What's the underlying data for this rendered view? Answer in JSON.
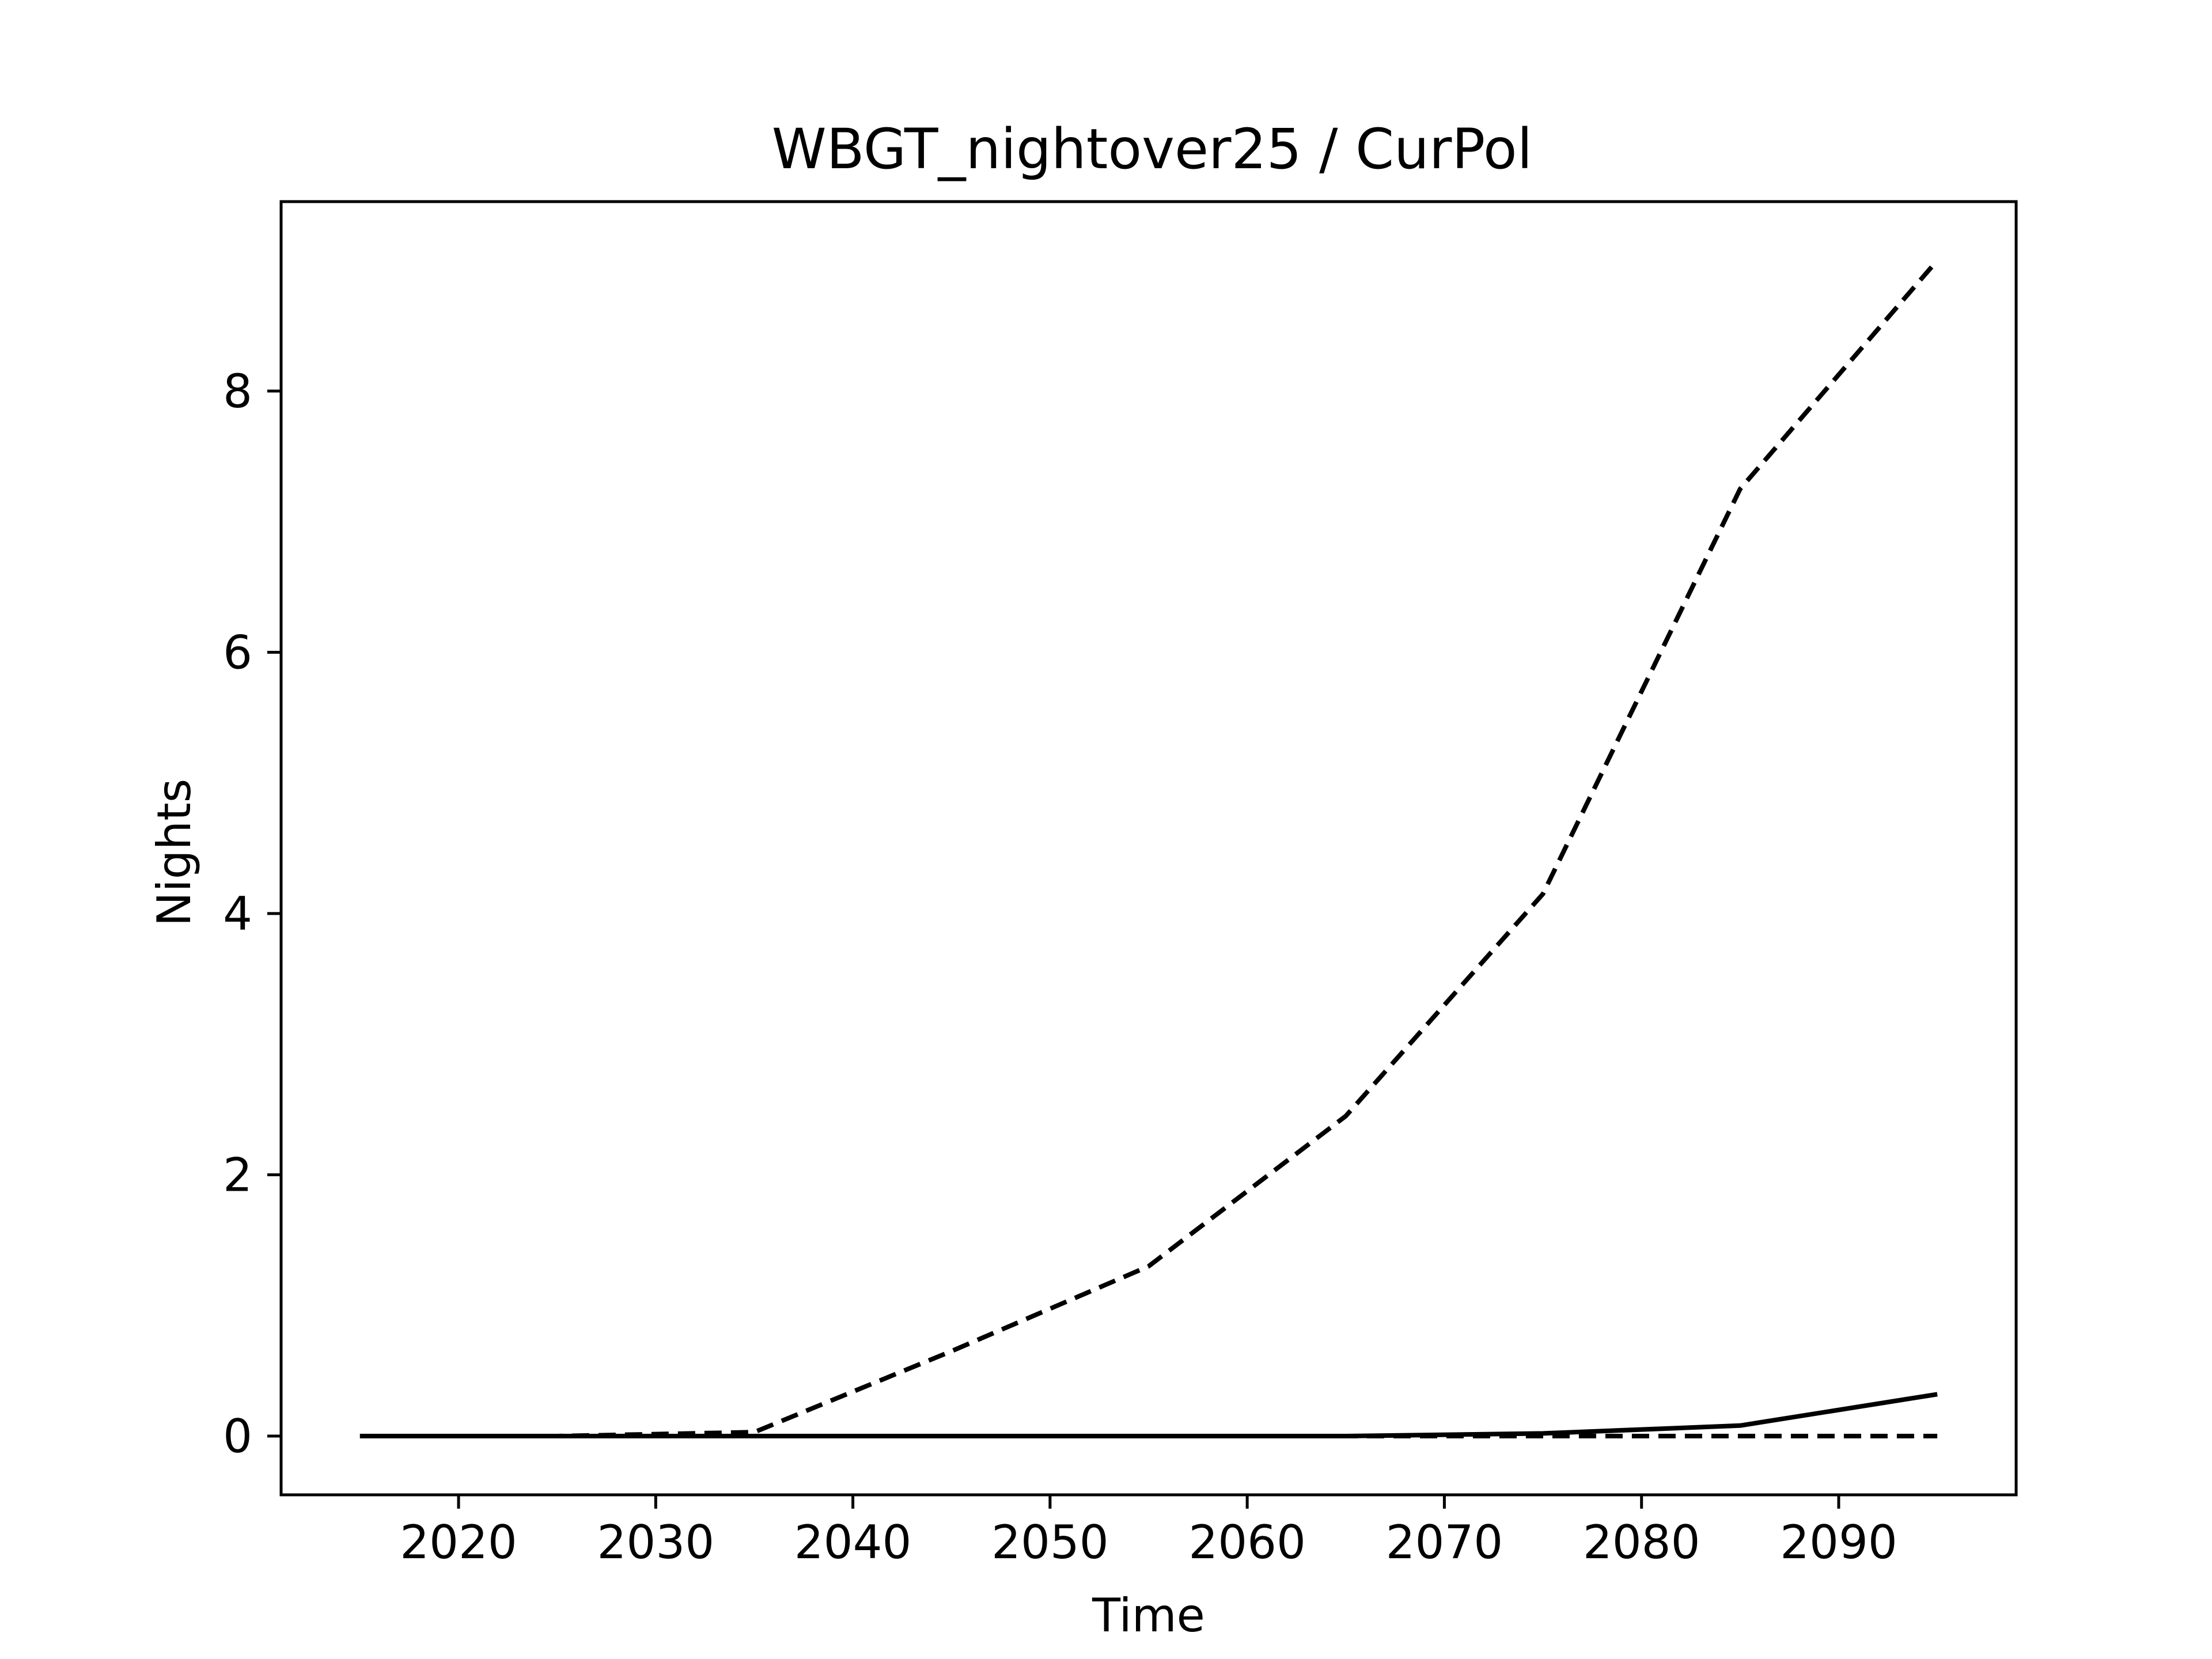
{
  "chart_data": {
    "type": "line",
    "title": "WBGT_nightover25 / CurPol",
    "xlabel": "Time",
    "ylabel": "Nights",
    "xlim": [
      2011,
      2099
    ],
    "ylim": [
      -0.45,
      9.45
    ],
    "x_ticks": [
      2020,
      2030,
      2040,
      2050,
      2060,
      2070,
      2080,
      2090
    ],
    "y_ticks": [
      0,
      2,
      4,
      6,
      8
    ],
    "grid": false,
    "legend": "none",
    "x": [
      2015,
      2025,
      2035,
      2045,
      2055,
      2065,
      2075,
      2085,
      2095
    ],
    "series": [
      {
        "style": "dashed",
        "color": "#000000",
        "values": [
          0.0,
          0.0,
          0.03,
          0.65,
          1.3,
          2.45,
          4.15,
          7.25,
          9.0
        ]
      },
      {
        "style": "solid",
        "color": "#000000",
        "values": [
          0.0,
          0.0,
          0.0,
          0.0,
          0.0,
          0.0,
          0.02,
          0.08,
          0.32
        ]
      },
      {
        "style": "dashed",
        "color": "#000000",
        "values": [
          0.0,
          0.0,
          0.0,
          0.0,
          0.0,
          0.0,
          0.0,
          0.0,
          0.0
        ]
      }
    ]
  }
}
